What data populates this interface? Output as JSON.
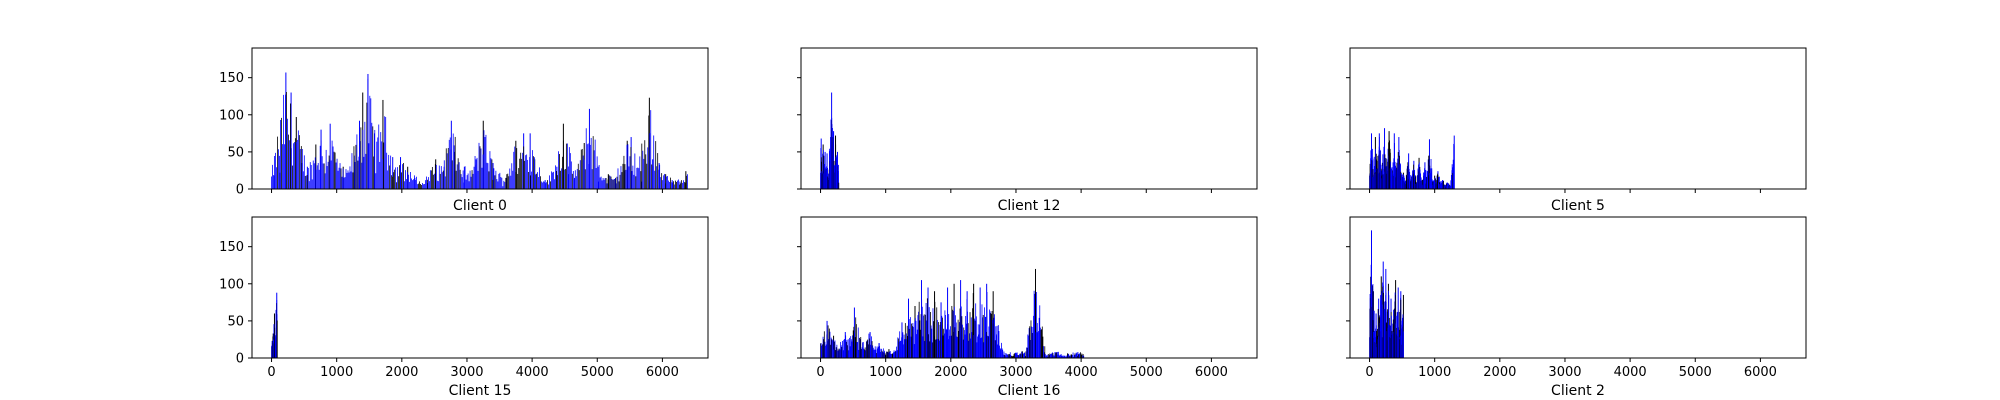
{
  "chart_data": {
    "type": "bar",
    "layout": "2x3 grid, shared x and y axes",
    "xlim": [
      -300,
      6700
    ],
    "ylim": [
      0,
      190
    ],
    "x_ticks": [
      0,
      1000,
      2000,
      3000,
      4000,
      5000,
      6000
    ],
    "y_ticks": [
      0,
      50,
      100,
      150
    ],
    "x_tick_labels_shown_on": "bottom row only",
    "y_tick_labels_shown_on": "left column only",
    "grid": false,
    "bar_colors": {
      "primary": "#0000ff",
      "secondary": "#000000"
    },
    "panels": [
      {
        "title": "Client 0",
        "x_extent": [
          0,
          6400
        ],
        "peaks": [
          [
            40,
            18
          ],
          [
            130,
            22
          ],
          [
            220,
            157
          ],
          [
            300,
            130
          ],
          [
            380,
            97
          ],
          [
            470,
            35
          ],
          [
            550,
            30
          ],
          [
            680,
            60
          ],
          [
            760,
            80
          ],
          [
            900,
            88
          ],
          [
            1100,
            30
          ],
          [
            1270,
            45
          ],
          [
            1350,
            92
          ],
          [
            1400,
            130
          ],
          [
            1480,
            155
          ],
          [
            1580,
            75
          ],
          [
            1710,
            120
          ],
          [
            1860,
            43
          ],
          [
            1980,
            43
          ],
          [
            2090,
            30
          ],
          [
            2200,
            15
          ],
          [
            2400,
            8
          ],
          [
            2520,
            40
          ],
          [
            2650,
            30
          ],
          [
            2760,
            92
          ],
          [
            2810,
            50
          ],
          [
            2960,
            30
          ],
          [
            3140,
            40
          ],
          [
            3250,
            92
          ],
          [
            3400,
            35
          ],
          [
            3600,
            15
          ],
          [
            3750,
            65
          ],
          [
            3870,
            75
          ],
          [
            3970,
            75
          ],
          [
            4040,
            40
          ],
          [
            4200,
            12
          ],
          [
            4380,
            30
          ],
          [
            4480,
            88
          ],
          [
            4560,
            20
          ],
          [
            4650,
            15
          ],
          [
            4800,
            62
          ],
          [
            4880,
            108
          ],
          [
            5020,
            10
          ],
          [
            5170,
            20
          ],
          [
            5280,
            15
          ],
          [
            5410,
            25
          ],
          [
            5460,
            65
          ],
          [
            5520,
            70
          ],
          [
            5680,
            10
          ],
          [
            5800,
            123
          ],
          [
            5850,
            40
          ],
          [
            5950,
            35
          ],
          [
            6050,
            20
          ],
          [
            6150,
            12
          ],
          [
            6270,
            10
          ],
          [
            6360,
            24
          ]
        ]
      },
      {
        "title": "Client 12",
        "x_extent": [
          0,
          280
        ],
        "peaks": [
          [
            10,
            68
          ],
          [
            40,
            60
          ],
          [
            70,
            50
          ],
          [
            100,
            48
          ],
          [
            140,
            40
          ],
          [
            170,
            130
          ],
          [
            200,
            78
          ],
          [
            230,
            72
          ],
          [
            260,
            50
          ]
        ]
      },
      {
        "title": "Client 5",
        "x_extent": [
          0,
          1300
        ],
        "peaks": [
          [
            30,
            75
          ],
          [
            90,
            70
          ],
          [
            150,
            75
          ],
          [
            230,
            82
          ],
          [
            300,
            78
          ],
          [
            380,
            75
          ],
          [
            450,
            70
          ],
          [
            520,
            22
          ],
          [
            600,
            48
          ],
          [
            680,
            38
          ],
          [
            760,
            42
          ],
          [
            850,
            36
          ],
          [
            920,
            67
          ],
          [
            1000,
            18
          ],
          [
            1050,
            24
          ],
          [
            1120,
            12
          ],
          [
            1200,
            8
          ],
          [
            1300,
            72
          ]
        ]
      },
      {
        "title": "Client 15",
        "x_extent": [
          0,
          90
        ],
        "peaks": [
          [
            10,
            12
          ],
          [
            45,
            60
          ],
          [
            80,
            88
          ]
        ]
      },
      {
        "title": "Client 16",
        "x_extent": [
          0,
          4050
        ],
        "peaks": [
          [
            100,
            50
          ],
          [
            200,
            30
          ],
          [
            380,
            35
          ],
          [
            520,
            68
          ],
          [
            650,
            20
          ],
          [
            760,
            35
          ],
          [
            900,
            20
          ],
          [
            1050,
            12
          ],
          [
            1250,
            48
          ],
          [
            1350,
            80
          ],
          [
            1450,
            70
          ],
          [
            1550,
            105
          ],
          [
            1650,
            95
          ],
          [
            1750,
            90
          ],
          [
            1850,
            75
          ],
          [
            1950,
            95
          ],
          [
            2050,
            100
          ],
          [
            2150,
            105
          ],
          [
            2250,
            90
          ],
          [
            2350,
            100
          ],
          [
            2450,
            95
          ],
          [
            2550,
            100
          ],
          [
            2650,
            90
          ],
          [
            2700,
            30
          ],
          [
            2900,
            5
          ],
          [
            3000,
            5
          ],
          [
            3100,
            8
          ],
          [
            3200,
            5
          ],
          [
            3300,
            120
          ],
          [
            3400,
            3
          ],
          [
            3600,
            8
          ],
          [
            3800,
            5
          ],
          [
            3950,
            8
          ]
        ]
      },
      {
        "title": "Client 2",
        "x_extent": [
          0,
          520
        ],
        "peaks": [
          [
            30,
            172
          ],
          [
            60,
            90
          ],
          [
            100,
            60
          ],
          [
            140,
            80
          ],
          [
            180,
            110
          ],
          [
            210,
            130
          ],
          [
            250,
            120
          ],
          [
            290,
            100
          ],
          [
            330,
            80
          ],
          [
            370,
            65
          ],
          [
            400,
            105
          ],
          [
            440,
            95
          ],
          [
            480,
            90
          ],
          [
            520,
            85
          ]
        ]
      }
    ]
  }
}
